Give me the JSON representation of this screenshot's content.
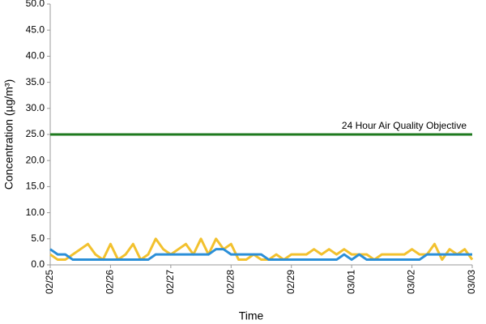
{
  "chart_data": {
    "type": "line",
    "x_label": "Time",
    "y_label": "Concentration (µg/m³)",
    "categories": [
      "02/25",
      null,
      null,
      null,
      null,
      null,
      null,
      null,
      "02/26",
      null,
      null,
      null,
      null,
      null,
      null,
      null,
      "02/27",
      null,
      null,
      null,
      null,
      null,
      null,
      null,
      "02/28",
      null,
      null,
      null,
      null,
      null,
      null,
      null,
      "02/29",
      null,
      null,
      null,
      null,
      null,
      null,
      null,
      "03/01",
      null,
      null,
      null,
      null,
      null,
      null,
      null,
      "03/02",
      null,
      null,
      null,
      null,
      null,
      null,
      null,
      "03/03"
    ],
    "series": [
      {
        "color": "#f2c12e",
        "values": [
          2,
          1,
          1,
          2,
          3,
          4,
          2,
          1,
          4,
          1,
          2,
          4,
          1,
          2,
          5,
          3,
          2,
          3,
          4,
          2,
          5,
          2,
          5,
          3,
          4,
          1,
          1,
          2,
          1,
          1,
          2,
          1,
          2,
          2,
          2,
          3,
          2,
          3,
          2,
          3,
          2,
          2,
          2,
          1,
          2,
          2,
          2,
          2,
          3,
          2,
          2,
          4,
          1,
          3,
          2,
          3,
          1
        ]
      },
      {
        "color": "#2b8fd8",
        "values": [
          3,
          2,
          2,
          1,
          1,
          1,
          1,
          1,
          1,
          1,
          1,
          1,
          1,
          1,
          2,
          2,
          2,
          2,
          2,
          2,
          2,
          2,
          3,
          3,
          2,
          2,
          2,
          2,
          2,
          1,
          1,
          1,
          1,
          1,
          1,
          1,
          1,
          1,
          1,
          2,
          1,
          2,
          1,
          1,
          1,
          1,
          1,
          1,
          1,
          1,
          2,
          2,
          2,
          2,
          2,
          2,
          2
        ]
      }
    ],
    "objective": {
      "label": "24 Hour Air Quality Objective",
      "value": 25,
      "color": "#1f7a1f"
    },
    "ylim": [
      0,
      50
    ],
    "yticks": [
      {
        "value": 0,
        "label": "0.0"
      },
      {
        "value": 5,
        "label": "5.0"
      },
      {
        "value": 10,
        "label": "10.0"
      },
      {
        "value": 15,
        "label": "15.0"
      },
      {
        "value": 20,
        "label": "20.0"
      },
      {
        "value": 25,
        "label": "25.0"
      },
      {
        "value": 30,
        "label": "30.0"
      },
      {
        "value": 35,
        "label": "35.0"
      },
      {
        "value": 40,
        "label": "40.0"
      },
      {
        "value": 45,
        "label": "45.0"
      },
      {
        "value": 50,
        "label": "50.0"
      }
    ],
    "grid": false
  }
}
